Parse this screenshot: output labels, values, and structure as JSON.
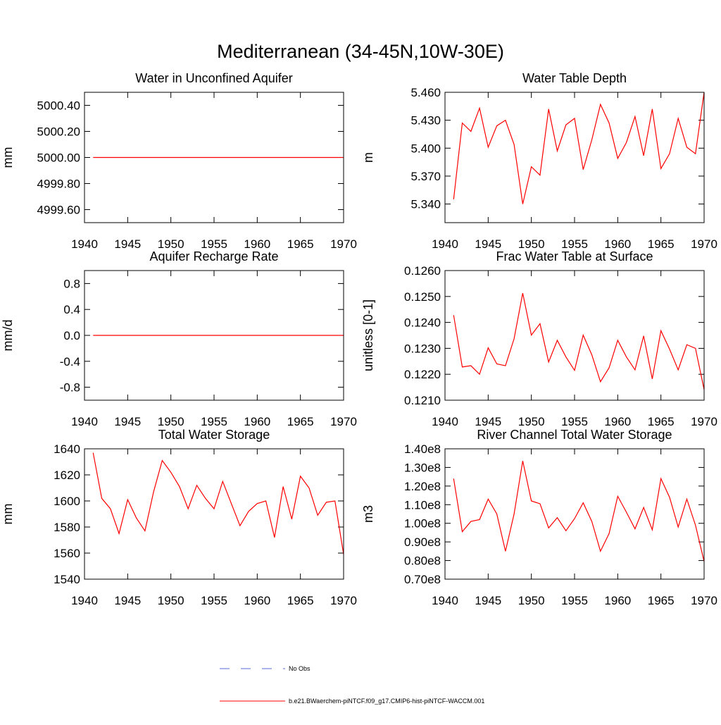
{
  "title": "Mediterranean (34-45N,10W-30E)",
  "legend": [
    {
      "name": "No Obs",
      "color": "#5a6ad8",
      "dash": true
    },
    {
      "name": "b.e21.BWaerchem-piNTCF.f09_g17.CMIP6-hist-piNTCF-WACCM.001",
      "color": "#ff0000",
      "dash": false
    }
  ],
  "chart_data": [
    {
      "type": "line",
      "title": "Water in Unconfined Aquifer",
      "ylabel": "mm",
      "color": "#ff0000",
      "x": [
        1941,
        1942,
        1943,
        1944,
        1945,
        1946,
        1947,
        1948,
        1949,
        1950,
        1951,
        1952,
        1953,
        1954,
        1955,
        1956,
        1957,
        1958,
        1959,
        1960,
        1961,
        1962,
        1963,
        1964,
        1965,
        1966,
        1967,
        1968,
        1969,
        1970
      ],
      "xlim": [
        1940,
        1970
      ],
      "xticks": [
        1940,
        1945,
        1950,
        1955,
        1960,
        1965,
        1970
      ],
      "ylim": [
        4999.5,
        5000.5
      ],
      "yticks": [
        {
          "value": 4999.6,
          "label": "4999.60"
        },
        {
          "value": 4999.8,
          "label": "4999.80"
        },
        {
          "value": 5000,
          "label": "5000.00"
        },
        {
          "value": 5000.2,
          "label": "5000.20"
        },
        {
          "value": 5000.4,
          "label": "5000.40"
        }
      ],
      "values": [
        5000,
        5000,
        5000,
        5000,
        5000,
        5000,
        5000,
        5000,
        5000,
        5000,
        5000,
        5000,
        5000,
        5000,
        5000,
        5000,
        5000,
        5000,
        5000,
        5000,
        5000,
        5000,
        5000,
        5000,
        5000,
        5000,
        5000,
        5000,
        5000,
        5000
      ]
    },
    {
      "type": "line",
      "title": "Water Table Depth",
      "ylabel": "m",
      "color": "#ff0000",
      "x": [
        1941,
        1942,
        1943,
        1944,
        1945,
        1946,
        1947,
        1948,
        1949,
        1950,
        1951,
        1952,
        1953,
        1954,
        1955,
        1956,
        1957,
        1958,
        1959,
        1960,
        1961,
        1962,
        1963,
        1964,
        1965,
        1966,
        1967,
        1968,
        1969,
        1970
      ],
      "xlim": [
        1940,
        1970
      ],
      "xticks": [
        1940,
        1945,
        1950,
        1955,
        1960,
        1965,
        1970
      ],
      "ylim": [
        5.32,
        5.46
      ],
      "yticks": [
        {
          "value": 5.34,
          "label": "5.340"
        },
        {
          "value": 5.37,
          "label": "5.370"
        },
        {
          "value": 5.4,
          "label": "5.400"
        },
        {
          "value": 5.43,
          "label": "5.430"
        },
        {
          "value": 5.46,
          "label": "5.460"
        }
      ],
      "values": [
        5.345,
        5.427,
        5.418,
        5.443,
        5.401,
        5.424,
        5.43,
        5.404,
        5.34,
        5.38,
        5.371,
        5.442,
        5.397,
        5.425,
        5.432,
        5.377,
        5.409,
        5.447,
        5.427,
        5.389,
        5.406,
        5.434,
        5.392,
        5.442,
        5.378,
        5.394,
        5.432,
        5.401,
        5.394,
        5.46
      ]
    },
    {
      "type": "line",
      "title": "Aquifer Recharge Rate",
      "ylabel": "mm/d",
      "color": "#ff0000",
      "x": [
        1941,
        1942,
        1943,
        1944,
        1945,
        1946,
        1947,
        1948,
        1949,
        1950,
        1951,
        1952,
        1953,
        1954,
        1955,
        1956,
        1957,
        1958,
        1959,
        1960,
        1961,
        1962,
        1963,
        1964,
        1965,
        1966,
        1967,
        1968,
        1969,
        1970
      ],
      "xlim": [
        1940,
        1970
      ],
      "xticks": [
        1940,
        1945,
        1950,
        1955,
        1960,
        1965,
        1970
      ],
      "ylim": [
        -1,
        1
      ],
      "yticks": [
        -0.8,
        -0.4,
        {
          "value": 0,
          "label": "0.0"
        },
        0.4,
        0.8
      ],
      "values": [
        0,
        0,
        0,
        0,
        0,
        0,
        0,
        0,
        0,
        0,
        0,
        0,
        0,
        0,
        0,
        0,
        0,
        0,
        0,
        0,
        0,
        0,
        0,
        0,
        0,
        0,
        0,
        0,
        0,
        0
      ]
    },
    {
      "type": "line",
      "title": "Frac Water Table at Surface",
      "ylabel": "unitless [0-1]",
      "color": "#ff0000",
      "x": [
        1941,
        1942,
        1943,
        1944,
        1945,
        1946,
        1947,
        1948,
        1949,
        1950,
        1951,
        1952,
        1953,
        1954,
        1955,
        1956,
        1957,
        1958,
        1959,
        1960,
        1961,
        1962,
        1963,
        1964,
        1965,
        1966,
        1967,
        1968,
        1969,
        1970
      ],
      "xlim": [
        1940,
        1970
      ],
      "xticks": [
        1940,
        1945,
        1950,
        1955,
        1960,
        1965,
        1970
      ],
      "ylim": [
        0.121,
        0.126
      ],
      "yticks": [
        {
          "value": 0.121,
          "label": "0.1210"
        },
        {
          "value": 0.122,
          "label": "0.1220"
        },
        {
          "value": 0.123,
          "label": "0.1230"
        },
        {
          "value": 0.124,
          "label": "0.1240"
        },
        {
          "value": 0.125,
          "label": "0.1250"
        },
        {
          "value": 0.126,
          "label": "0.1260"
        }
      ],
      "values": [
        0.12428,
        0.12228,
        0.12233,
        0.122,
        0.12302,
        0.1224,
        0.12233,
        0.12337,
        0.12513,
        0.12351,
        0.12395,
        0.12247,
        0.12331,
        0.12267,
        0.12215,
        0.12351,
        0.12275,
        0.12171,
        0.12225,
        0.12331,
        0.12267,
        0.12217,
        0.12348,
        0.12182,
        0.12368,
        0.12297,
        0.12217,
        0.12314,
        0.123,
        0.12141
      ]
    },
    {
      "type": "line",
      "title": "Total Water Storage",
      "ylabel": "mm",
      "color": "#ff0000",
      "x": [
        1941,
        1942,
        1943,
        1944,
        1945,
        1946,
        1947,
        1948,
        1949,
        1950,
        1951,
        1952,
        1953,
        1954,
        1955,
        1956,
        1957,
        1958,
        1959,
        1960,
        1961,
        1962,
        1963,
        1964,
        1965,
        1966,
        1967,
        1968,
        1969,
        1970
      ],
      "xlim": [
        1940,
        1970
      ],
      "xticks": [
        1940,
        1945,
        1950,
        1955,
        1960,
        1965,
        1970
      ],
      "ylim": [
        1540,
        1640
      ],
      "yticks": [
        1540,
        1560,
        1580,
        1600,
        1620,
        1640
      ],
      "values": [
        1637,
        1602,
        1594,
        1575,
        1601,
        1587,
        1577,
        1607,
        1631,
        1622,
        1611,
        1594,
        1612,
        1602,
        1594,
        1615,
        1598,
        1581,
        1592,
        1598,
        1600,
        1572,
        1611,
        1586,
        1619,
        1610,
        1589,
        1599,
        1600,
        1559
      ]
    },
    {
      "type": "line",
      "title": "River Channel Total Water Storage",
      "ylabel": "m3",
      "color": "#ff0000",
      "x": [
        1941,
        1942,
        1943,
        1944,
        1945,
        1946,
        1947,
        1948,
        1949,
        1950,
        1951,
        1952,
        1953,
        1954,
        1955,
        1956,
        1957,
        1958,
        1959,
        1960,
        1961,
        1962,
        1963,
        1964,
        1965,
        1966,
        1967,
        1968,
        1969,
        1970
      ],
      "xlim": [
        1940,
        1970
      ],
      "xticks": [
        1940,
        1945,
        1950,
        1955,
        1960,
        1965,
        1970
      ],
      "ylim": [
        70000000,
        140000000
      ],
      "yticks": [
        {
          "value": 70000000,
          "label": "0.70e8"
        },
        {
          "value": 80000000,
          "label": "0.80e8"
        },
        {
          "value": 90000000,
          "label": "0.90e8"
        },
        {
          "value": 100000000,
          "label": "1.00e8"
        },
        {
          "value": 110000000,
          "label": "1.10e8"
        },
        {
          "value": 120000000,
          "label": "1.20e8"
        },
        {
          "value": 130000000,
          "label": "1.30e8"
        },
        {
          "value": 140000000,
          "label": "1.40e8"
        }
      ],
      "values": [
        124000000,
        95500000,
        101000000,
        102000000,
        113000000,
        105000000,
        85000000,
        105000000,
        133500000,
        112000000,
        110500000,
        97500000,
        103000000,
        96000000,
        102500000,
        111000000,
        101000000,
        85000000,
        94500000,
        114500000,
        106000000,
        97000000,
        108500000,
        96500000,
        124000000,
        114000000,
        98000000,
        113000000,
        99000000,
        79500000
      ]
    }
  ]
}
